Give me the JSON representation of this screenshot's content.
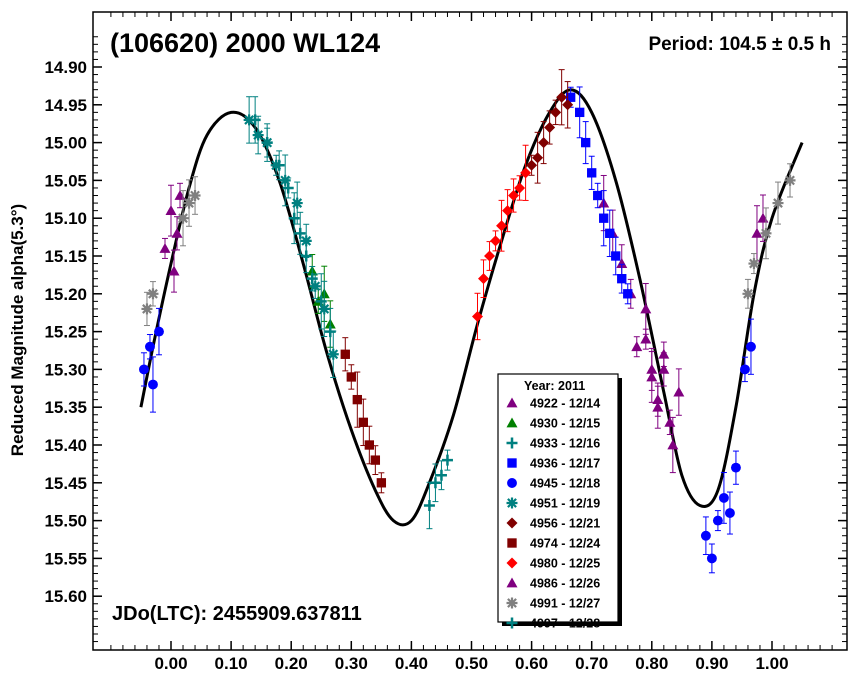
{
  "chart_data": {
    "type": "scatter",
    "title": "(106620) 2000 WL124",
    "period_label": "Period: 104.5 ± 0.5 h",
    "epoch_label": "JDo(LTC): 2455909.637811",
    "ylabel": "Reduced Magnitude alpha(5.3°)",
    "xlabel": "",
    "xlim": [
      -0.1,
      1.12
    ],
    "ylim": [
      15.66,
      14.86
    ],
    "y_inverted": true,
    "x_ticks": [
      "0.00",
      "0.10",
      "0.20",
      "0.30",
      "0.40",
      "0.50",
      "0.60",
      "0.70",
      "0.80",
      "0.90",
      "1.00"
    ],
    "y_ticks": [
      "14.90",
      "14.95",
      "15.00",
      "15.05",
      "15.10",
      "15.15",
      "15.20",
      "15.25",
      "15.30",
      "15.35",
      "15.40",
      "15.45",
      "15.50",
      "15.55",
      "15.60"
    ],
    "legend_title": "Year: 2011",
    "legend_placement": "bottom-center",
    "fit_curve": {
      "x": [
        -0.05,
        -0.03,
        0.0,
        0.03,
        0.06,
        0.1,
        0.14,
        0.18,
        0.22,
        0.26,
        0.3,
        0.34,
        0.37,
        0.4,
        0.43,
        0.47,
        0.51,
        0.55,
        0.59,
        0.63,
        0.665,
        0.7,
        0.74,
        0.78,
        0.82,
        0.85,
        0.88,
        0.91,
        0.94,
        0.97,
        1.0,
        1.05
      ],
      "y": [
        15.35,
        15.27,
        15.16,
        15.06,
        14.99,
        14.96,
        14.98,
        15.05,
        15.16,
        15.28,
        15.38,
        15.46,
        15.5,
        15.5,
        15.45,
        15.36,
        15.24,
        15.13,
        15.03,
        14.96,
        14.93,
        14.96,
        15.05,
        15.18,
        15.33,
        15.44,
        15.48,
        15.46,
        15.35,
        15.2,
        15.1,
        15.0
      ]
    },
    "series": [
      {
        "name": "4922 - 12/14",
        "color": "#800080",
        "marker": "triangle",
        "x": [
          -0.01,
          0.0,
          0.005,
          0.01,
          0.015,
          0.72,
          0.735,
          0.75,
          0.765,
          0.775,
          0.79,
          0.8,
          0.81,
          0.82,
          0.835,
          0.845
        ],
        "y": [
          15.14,
          15.09,
          15.17,
          15.12,
          15.07,
          15.08,
          15.12,
          15.16,
          15.2,
          15.27,
          15.22,
          15.3,
          15.34,
          15.28,
          15.4,
          15.33
        ]
      },
      {
        "name": "4930 - 12/15",
        "color": "#008000",
        "marker": "triangle",
        "x": [
          0.235,
          0.245,
          0.255,
          0.265
        ],
        "y": [
          15.17,
          15.21,
          15.2,
          15.24
        ]
      },
      {
        "name": "4933 - 12/16",
        "color": "#008080",
        "marker": "plus",
        "x": [
          0.14,
          0.16,
          0.18,
          0.195,
          0.205,
          0.215,
          0.225,
          0.235,
          0.25,
          0.265
        ],
        "y": [
          14.97,
          15.0,
          15.03,
          15.06,
          15.1,
          15.12,
          15.15,
          15.18,
          15.21,
          15.25
        ]
      },
      {
        "name": "4936 - 12/17",
        "color": "#0000ff",
        "marker": "square",
        "x": [
          0.665,
          0.68,
          0.69,
          0.7,
          0.71,
          0.72,
          0.73,
          0.74,
          0.75,
          0.76
        ],
        "y": [
          14.94,
          14.96,
          15.0,
          15.04,
          15.07,
          15.1,
          15.12,
          15.15,
          15.18,
          15.2
        ]
      },
      {
        "name": "4945 - 12/18",
        "color": "#0000ff",
        "marker": "circle",
        "x": [
          -0.045,
          -0.035,
          -0.03,
          -0.02,
          0.89,
          0.9,
          0.91,
          0.92,
          0.93,
          0.94,
          0.955,
          0.965
        ],
        "y": [
          15.3,
          15.27,
          15.32,
          15.25,
          15.52,
          15.55,
          15.5,
          15.47,
          15.49,
          15.43,
          15.3,
          15.27
        ]
      },
      {
        "name": "4951 - 12/19",
        "color": "#008080",
        "marker": "star",
        "x": [
          0.13,
          0.145,
          0.16,
          0.175,
          0.19,
          0.21,
          0.225,
          0.24,
          0.255,
          0.27
        ],
        "y": [
          14.97,
          14.99,
          15.0,
          15.03,
          15.05,
          15.08,
          15.13,
          15.19,
          15.22,
          15.28
        ]
      },
      {
        "name": "4956 - 12/21",
        "color": "#800000",
        "marker": "diamond",
        "x": [
          0.6,
          0.61,
          0.62,
          0.63,
          0.64,
          0.65,
          0.66
        ],
        "y": [
          15.03,
          15.02,
          15.0,
          14.98,
          14.96,
          14.94,
          14.95
        ]
      },
      {
        "name": "4974 - 12/24",
        "color": "#800000",
        "marker": "square",
        "x": [
          0.29,
          0.3,
          0.31,
          0.32,
          0.33,
          0.34,
          0.35
        ],
        "y": [
          15.28,
          15.31,
          15.34,
          15.37,
          15.4,
          15.42,
          15.45
        ]
      },
      {
        "name": "4980 - 12/25",
        "color": "#ff0000",
        "marker": "diamond",
        "x": [
          0.51,
          0.52,
          0.53,
          0.54,
          0.55,
          0.56,
          0.57,
          0.58,
          0.59
        ],
        "y": [
          15.23,
          15.18,
          15.15,
          15.13,
          15.11,
          15.09,
          15.07,
          15.06,
          15.04
        ]
      },
      {
        "name": "4986 - 12/26",
        "color": "#800080",
        "marker": "triangle",
        "x": [
          0.79,
          0.8,
          0.81,
          0.82,
          0.83,
          0.975,
          0.985
        ],
        "y": [
          15.26,
          15.31,
          15.35,
          15.3,
          15.37,
          15.12,
          15.1
        ]
      },
      {
        "name": "4991 - 12/27",
        "color": "#808080",
        "marker": "star",
        "x": [
          -0.04,
          -0.03,
          0.02,
          0.03,
          0.04,
          0.96,
          0.97,
          0.99,
          1.01,
          1.03
        ],
        "y": [
          15.22,
          15.2,
          15.1,
          15.08,
          15.07,
          15.2,
          15.16,
          15.12,
          15.08,
          15.05
        ]
      },
      {
        "name": "4997 - 12/28",
        "color": "#008080",
        "marker": "plus",
        "x": [
          0.43,
          0.44,
          0.45,
          0.46
        ],
        "y": [
          15.48,
          15.45,
          15.44,
          15.42
        ]
      }
    ]
  }
}
